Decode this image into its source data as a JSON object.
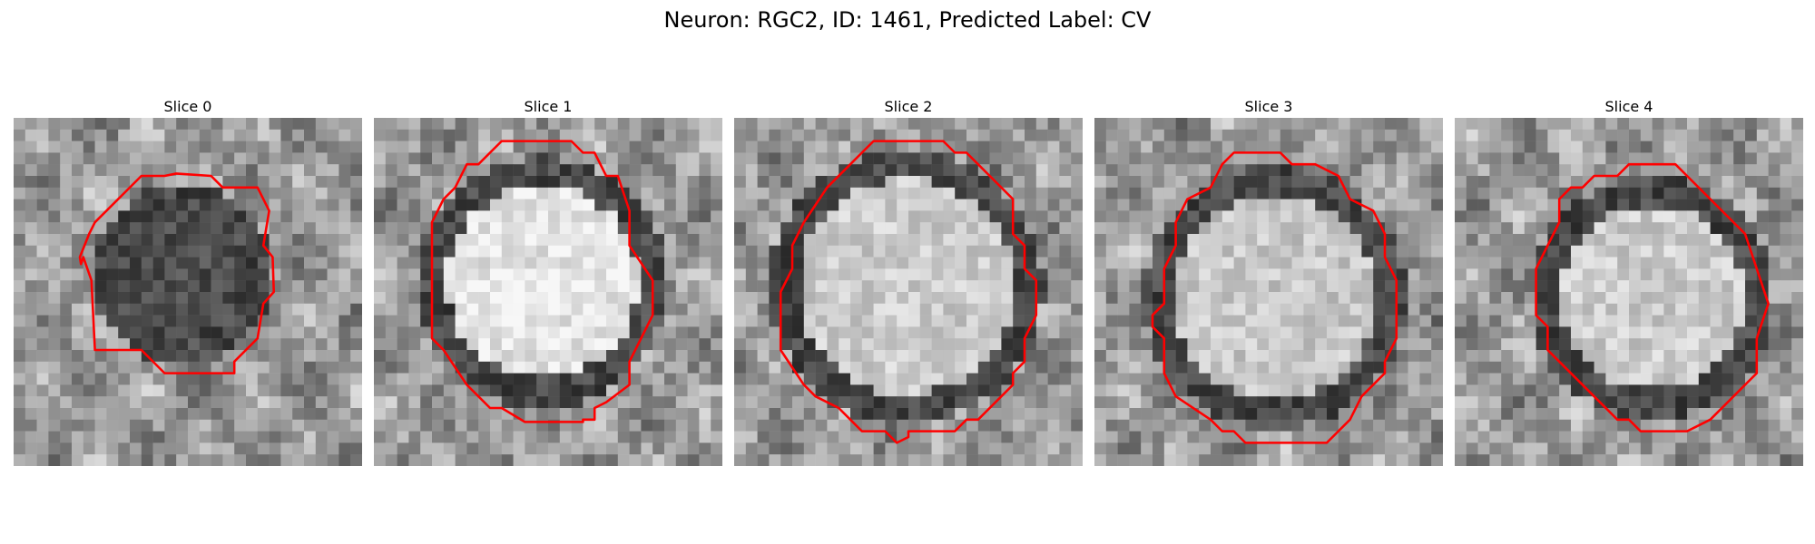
{
  "figure": {
    "title": "Neuron: RGC2, ID: 1461, Predicted Label: CV"
  },
  "panels": [
    {
      "title": "Slice 0"
    },
    {
      "title": "Slice 1"
    },
    {
      "title": "Slice 2"
    },
    {
      "title": "Slice 3"
    },
    {
      "title": "Slice 4"
    }
  ],
  "colors": {
    "contour": "#ff0000",
    "background": "#ffffff"
  }
}
